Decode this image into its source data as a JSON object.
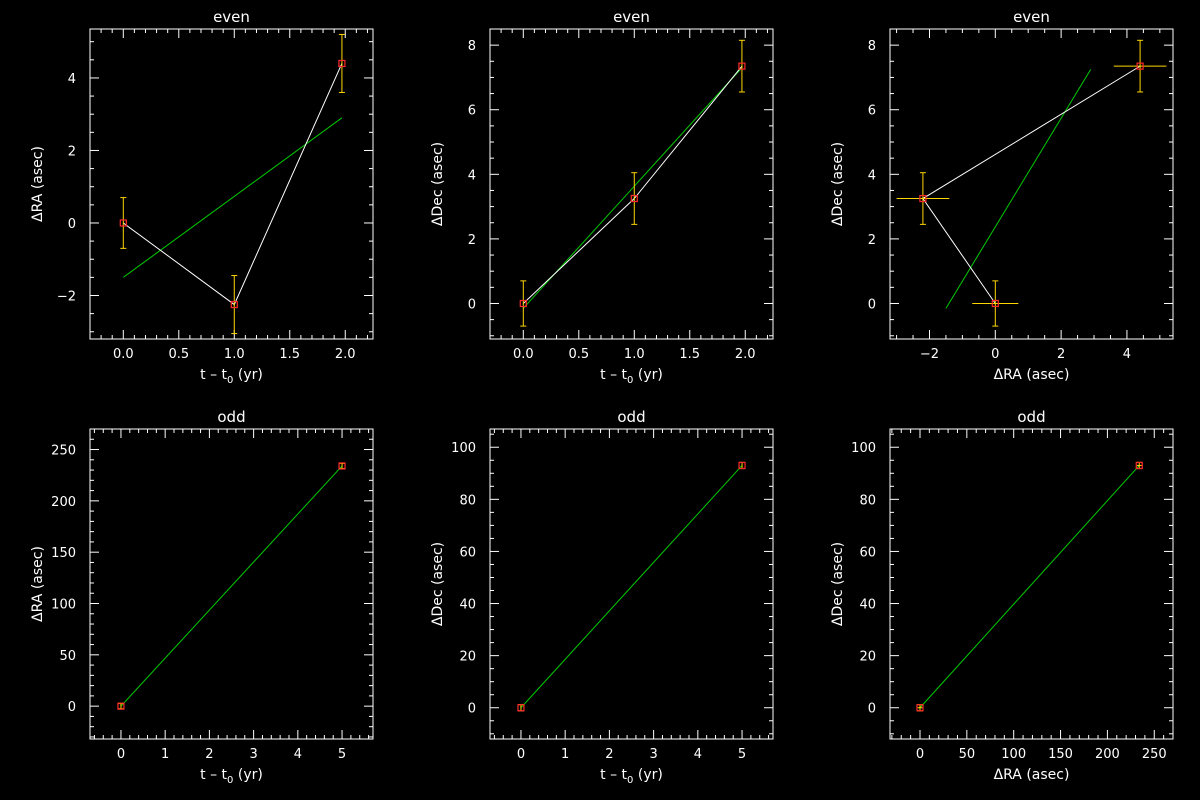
{
  "colors": {
    "background": "#000000",
    "axis": "#ffffff",
    "data_line": "#ffffff",
    "fit_line": "#00cc00",
    "error_bar": "#ffd700",
    "marker": "#ff2a2a"
  },
  "chart_data": [
    {
      "id": "even-ra-vs-t",
      "type": "scatter",
      "title": "even",
      "xlabel": {
        "pre": "t – t",
        "sub": "0",
        "post": " (yr)"
      },
      "ylabel": {
        "pre": "ΔRA (asec)"
      },
      "xlim": [
        -0.3,
        2.25
      ],
      "ylim": [
        -3.2,
        5.35
      ],
      "xticks": [
        0.0,
        0.5,
        1.0,
        1.5,
        2.0
      ],
      "xtick_labels": [
        "0.0",
        "0.5",
        "1.0",
        "1.5",
        "2.0"
      ],
      "yticks": [
        -2,
        0,
        2,
        4
      ],
      "ytick_labels": [
        "−2",
        "0",
        "2",
        "4"
      ],
      "x_minor": 0.1,
      "y_minor": 0.5,
      "points": [
        {
          "x": 0.0,
          "y": 0.0,
          "yerr": 0.7
        },
        {
          "x": 1.0,
          "y": -2.25,
          "yerr": 0.8
        },
        {
          "x": 1.97,
          "y": 4.4,
          "yerr": 0.8
        }
      ],
      "connect_points": true,
      "fit": [
        [
          0.0,
          -1.5
        ],
        [
          1.97,
          2.9
        ]
      ]
    },
    {
      "id": "even-dec-vs-t",
      "type": "scatter",
      "title": "even",
      "xlabel": {
        "pre": "t – t",
        "sub": "0",
        "post": " (yr)"
      },
      "ylabel": {
        "pre": "ΔDec (asec)"
      },
      "xlim": [
        -0.3,
        2.25
      ],
      "ylim": [
        -1.1,
        8.5
      ],
      "xticks": [
        0.0,
        0.5,
        1.0,
        1.5,
        2.0
      ],
      "xtick_labels": [
        "0.0",
        "0.5",
        "1.0",
        "1.5",
        "2.0"
      ],
      "yticks": [
        0,
        2,
        4,
        6,
        8
      ],
      "ytick_labels": [
        "0",
        "2",
        "4",
        "6",
        "8"
      ],
      "x_minor": 0.1,
      "y_minor": 0.5,
      "points": [
        {
          "x": 0.0,
          "y": 0.0,
          "yerr": 0.7
        },
        {
          "x": 1.0,
          "y": 3.25,
          "yerr": 0.8
        },
        {
          "x": 1.97,
          "y": 7.35,
          "yerr": 0.8
        }
      ],
      "connect_points": true,
      "fit": [
        [
          0.0,
          -0.15
        ],
        [
          1.97,
          7.3
        ]
      ]
    },
    {
      "id": "even-dec-vs-ra",
      "type": "scatter",
      "title": "even",
      "xlabel": {
        "pre": "ΔRA (asec)"
      },
      "ylabel": {
        "pre": "ΔDec (asec)"
      },
      "xlim": [
        -3.2,
        5.4
      ],
      "ylim": [
        -1.1,
        8.5
      ],
      "xticks": [
        -2,
        0,
        2,
        4
      ],
      "xtick_labels": [
        "−2",
        "0",
        "2",
        "4"
      ],
      "yticks": [
        0,
        2,
        4,
        6,
        8
      ],
      "ytick_labels": [
        "0",
        "2",
        "4",
        "6",
        "8"
      ],
      "x_minor": 0.5,
      "y_minor": 0.5,
      "points": [
        {
          "x": 0.0,
          "y": 0.0,
          "xerr": 0.7,
          "yerr": 0.7
        },
        {
          "x": -2.2,
          "y": 3.25,
          "xerr": 0.8,
          "yerr": 0.8
        },
        {
          "x": 4.4,
          "y": 7.35,
          "xerr": 0.8,
          "yerr": 0.8
        }
      ],
      "connect_points": true,
      "fit": [
        [
          -1.5,
          -0.15
        ],
        [
          2.9,
          7.25
        ]
      ]
    },
    {
      "id": "odd-ra-vs-t",
      "type": "scatter",
      "title": "odd",
      "xlabel": {
        "pre": "t – t",
        "sub": "0",
        "post": " (yr)"
      },
      "ylabel": {
        "pre": "ΔRA (asec)"
      },
      "xlim": [
        -0.7,
        5.7
      ],
      "ylim": [
        -32,
        270
      ],
      "xticks": [
        0,
        1,
        2,
        3,
        4,
        5
      ],
      "xtick_labels": [
        "0",
        "1",
        "2",
        "3",
        "4",
        "5"
      ],
      "yticks": [
        0,
        50,
        100,
        150,
        200,
        250
      ],
      "ytick_labels": [
        "0",
        "50",
        "100",
        "150",
        "200",
        "250"
      ],
      "x_minor": 0.2,
      "y_minor": 10,
      "points": [
        {
          "x": 0.0,
          "y": 0.0,
          "yerr": 2.5
        },
        {
          "x": 5.0,
          "y": 234.0,
          "yerr": 2.5
        }
      ],
      "connect_points": false,
      "fit": [
        [
          0.0,
          0.0
        ],
        [
          5.0,
          234.0
        ]
      ]
    },
    {
      "id": "odd-dec-vs-t",
      "type": "scatter",
      "title": "odd",
      "xlabel": {
        "pre": "t – t",
        "sub": "0",
        "post": " (yr)"
      },
      "ylabel": {
        "pre": "ΔDec (asec)"
      },
      "xlim": [
        -0.7,
        5.7
      ],
      "ylim": [
        -12,
        107
      ],
      "xticks": [
        0,
        1,
        2,
        3,
        4,
        5
      ],
      "xtick_labels": [
        "0",
        "1",
        "2",
        "3",
        "4",
        "5"
      ],
      "yticks": [
        0,
        20,
        40,
        60,
        80,
        100
      ],
      "ytick_labels": [
        "0",
        "20",
        "40",
        "60",
        "80",
        "100"
      ],
      "x_minor": 0.2,
      "y_minor": 5,
      "points": [
        {
          "x": 0.0,
          "y": 0.0,
          "yerr": 1.2
        },
        {
          "x": 5.0,
          "y": 93.0,
          "yerr": 1.2
        }
      ],
      "connect_points": false,
      "fit": [
        [
          0.0,
          0.0
        ],
        [
          5.0,
          93.0
        ]
      ]
    },
    {
      "id": "odd-dec-vs-ra",
      "type": "scatter",
      "title": "odd",
      "xlabel": {
        "pre": "ΔRA (asec)"
      },
      "ylabel": {
        "pre": "ΔDec (asec)"
      },
      "xlim": [
        -32,
        270
      ],
      "ylim": [
        -12,
        107
      ],
      "xticks": [
        0,
        50,
        100,
        150,
        200,
        250
      ],
      "xtick_labels": [
        "0",
        "50",
        "100",
        "150",
        "200",
        "250"
      ],
      "yticks": [
        0,
        20,
        40,
        60,
        80,
        100
      ],
      "ytick_labels": [
        "0",
        "20",
        "40",
        "60",
        "80",
        "100"
      ],
      "x_minor": 10,
      "y_minor": 5,
      "points": [
        {
          "x": 0.0,
          "y": 0.0,
          "xerr": 2.5,
          "yerr": 1.2
        },
        {
          "x": 234.0,
          "y": 93.0,
          "xerr": 2.5,
          "yerr": 1.2
        }
      ],
      "connect_points": false,
      "fit": [
        [
          0.0,
          0.0
        ],
        [
          234.0,
          93.0
        ]
      ]
    }
  ]
}
